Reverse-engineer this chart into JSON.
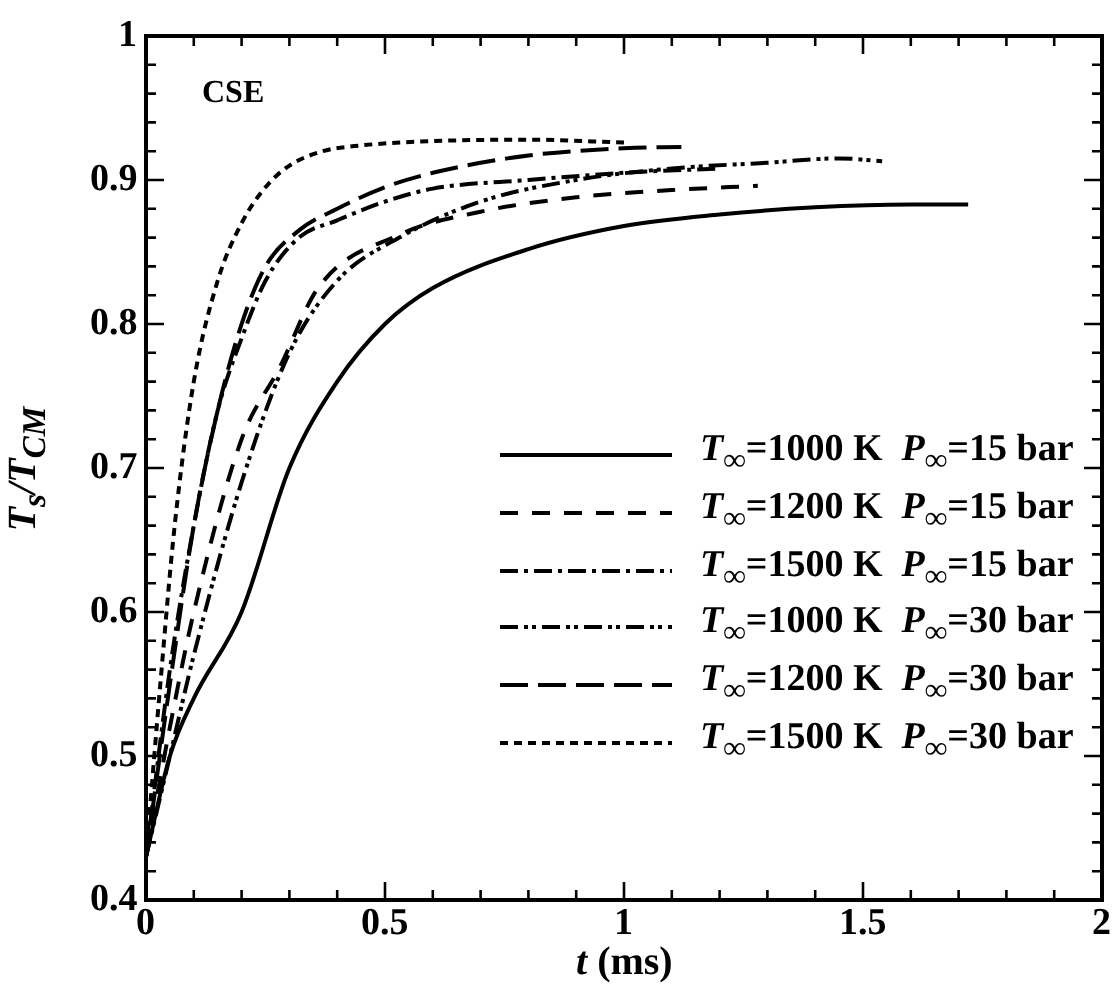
{
  "chart_data": {
    "type": "line",
    "xlabel": "t (ms)",
    "ylabel": "T$_{s}$/T$_{CM}$",
    "annotations": [
      "CSE"
    ],
    "legend": "bottom right",
    "grid": false,
    "marker": "none",
    "xlim": [
      0,
      2
    ],
    "ylim": [
      0.4,
      1
    ],
    "xticks": [
      0,
      {
        "value": 0.1,
        "label": null
      },
      {
        "value": 0.2,
        "label": null
      },
      {
        "value": 0.3,
        "label": null
      },
      {
        "value": 0.4,
        "label": null
      },
      0.5,
      {
        "value": 0.6,
        "label": null
      },
      {
        "value": 0.7,
        "label": null
      },
      {
        "value": 0.8,
        "label": null
      },
      {
        "value": 0.9,
        "label": null
      },
      1,
      {
        "value": 1.1,
        "label": null
      },
      {
        "value": 1.2,
        "label": null
      },
      {
        "value": 1.3,
        "label": null
      },
      {
        "value": 1.4,
        "label": null
      },
      1.5,
      {
        "value": 1.6,
        "label": null
      },
      {
        "value": 1.7,
        "label": null
      },
      {
        "value": 1.8,
        "label": null
      },
      {
        "value": 1.9,
        "label": null
      },
      2
    ],
    "yticks": [
      0.4,
      {
        "value": 0.42,
        "label": null
      },
      {
        "value": 0.44,
        "label": null
      },
      {
        "value": 0.46,
        "label": null
      },
      {
        "value": 0.48,
        "label": null
      },
      0.5,
      {
        "value": 0.52,
        "label": null
      },
      {
        "value": 0.54,
        "label": null
      },
      {
        "value": 0.56,
        "label": null
      },
      {
        "value": 0.58,
        "label": null
      },
      0.6,
      {
        "value": 0.62,
        "label": null
      },
      {
        "value": 0.64,
        "label": null
      },
      {
        "value": 0.66,
        "label": null
      },
      {
        "value": 0.68,
        "label": null
      },
      0.7,
      {
        "value": 0.72,
        "label": null
      },
      {
        "value": 0.74,
        "label": null
      },
      {
        "value": 0.76,
        "label": null
      },
      {
        "value": 0.78,
        "label": null
      },
      0.8,
      {
        "value": 0.82,
        "label": null
      },
      {
        "value": 0.84,
        "label": null
      },
      {
        "value": 0.86,
        "label": null
      },
      {
        "value": 0.88,
        "label": null
      },
      0.9,
      {
        "value": 0.92,
        "label": null
      },
      {
        "value": 0.94,
        "label": null
      },
      {
        "value": 0.96,
        "label": null
      },
      {
        "value": 0.98,
        "label": null
      },
      1
    ],
    "series": [
      {
        "name": "T$_{∞}$=1000 K  P$_{∞}$=15 bar",
        "color": "#000000",
        "line_style": "solid",
        "x": [
          0,
          0.05,
          0.1,
          0.2,
          0.3,
          0.4,
          0.5,
          0.6,
          0.8,
          1.0,
          1.2,
          1.4,
          1.6,
          1.72
        ],
        "values": [
          0.43,
          0.5,
          0.54,
          0.6,
          0.7,
          0.76,
          0.8,
          0.825,
          0.852,
          0.868,
          0.876,
          0.881,
          0.883,
          0.883
        ]
      },
      {
        "name": "T$_{∞}$=1200 K  P$_{∞}$=15 bar",
        "color": "#000000",
        "line_style": "dashed",
        "x": [
          0,
          0.05,
          0.1,
          0.2,
          0.28,
          0.36,
          0.53,
          0.7,
          0.9,
          1.1,
          1.28
        ],
        "values": [
          0.43,
          0.52,
          0.6,
          0.72,
          0.77,
          0.825,
          0.862,
          0.878,
          0.888,
          0.893,
          0.896
        ]
      },
      {
        "name": "T$_{∞}$=1500 K  P$_{∞}$=15 bar",
        "color": "#000000",
        "line_style": "dashdot",
        "x": [
          0,
          0.05,
          0.1,
          0.15,
          0.2,
          0.25,
          0.32,
          0.4,
          0.5,
          0.6,
          0.8,
          1.0,
          1.2
        ],
        "values": [
          0.43,
          0.56,
          0.66,
          0.74,
          0.79,
          0.83,
          0.86,
          0.872,
          0.885,
          0.894,
          0.9,
          0.905,
          0.908
        ]
      },
      {
        "name": "T$_{∞}$=1000 K  P$_{∞}$=30 bar",
        "color": "#000000",
        "line_style": "dashdotdot",
        "x": [
          0,
          0.05,
          0.1,
          0.2,
          0.3,
          0.4,
          0.53,
          0.7,
          0.9,
          1.1,
          1.3,
          1.45,
          1.54
        ],
        "values": [
          0.43,
          0.5,
          0.57,
          0.69,
          0.78,
          0.83,
          0.86,
          0.885,
          0.9,
          0.908,
          0.912,
          0.915,
          0.913
        ]
      },
      {
        "name": "T$_{∞}$=1200 K  P$_{∞}$=30 bar",
        "color": "#000000",
        "line_style": "longdash",
        "x": [
          0,
          0.05,
          0.1,
          0.15,
          0.2,
          0.25,
          0.32,
          0.4,
          0.5,
          0.6,
          0.8,
          1.0,
          1.12
        ],
        "values": [
          0.43,
          0.55,
          0.66,
          0.74,
          0.8,
          0.84,
          0.865,
          0.88,
          0.895,
          0.905,
          0.917,
          0.922,
          0.923
        ]
      },
      {
        "name": "T$_{∞}$=1500 K  P$_{∞}$=30 bar",
        "color": "#000000",
        "line_style": "dotted",
        "x": [
          0,
          0.03,
          0.06,
          0.1,
          0.15,
          0.2,
          0.25,
          0.3,
          0.37,
          0.45,
          0.6,
          0.8,
          1.0
        ],
        "values": [
          0.43,
          0.55,
          0.66,
          0.76,
          0.83,
          0.87,
          0.895,
          0.91,
          0.92,
          0.924,
          0.927,
          0.928,
          0.926
        ]
      }
    ]
  }
}
